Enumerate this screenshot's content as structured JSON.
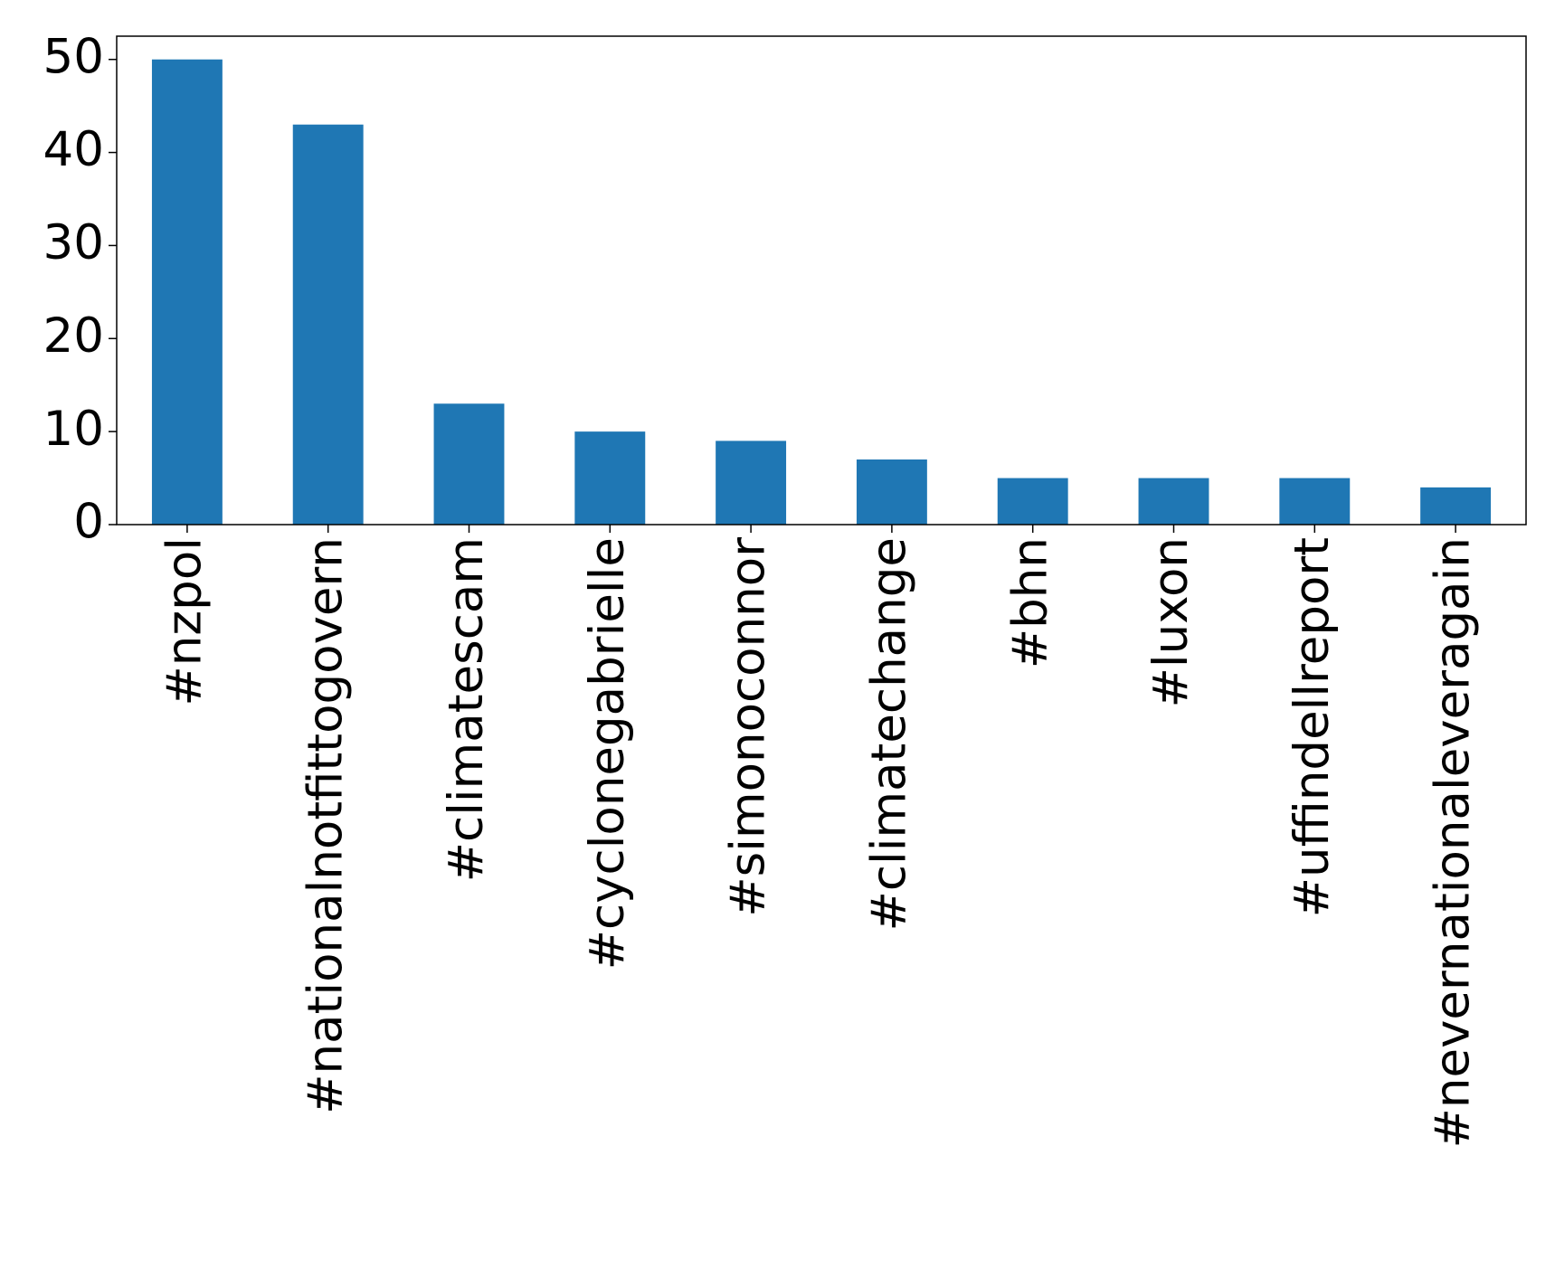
{
  "chart_data": {
    "type": "bar",
    "categories": [
      "#nzpol",
      "#nationalnotfittogovern",
      "#climatescam",
      "#cyclonegabrielle",
      "#simonoconnor",
      "#climatechange",
      "#bhn",
      "#luxon",
      "#uffindellreport",
      "#nevernationaleveragain"
    ],
    "values": [
      50,
      43,
      13,
      10,
      9,
      7,
      5,
      5,
      5,
      4
    ],
    "color": "#1f77b4",
    "ylim": [
      0,
      52.5
    ],
    "yticks": [
      0,
      10,
      20,
      30,
      40,
      50
    ],
    "grid": false
  }
}
